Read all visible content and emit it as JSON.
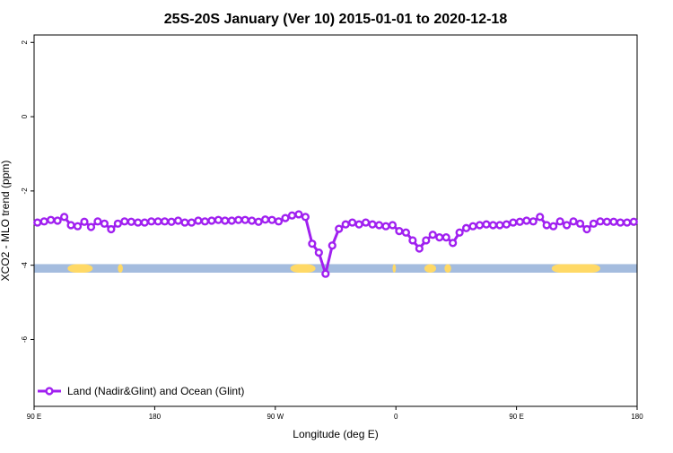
{
  "chart_data": {
    "type": "line",
    "title": "25S-20S January (Ver 10)   2015-01-01 to 2020-12-18",
    "xlabel": "Longitude (deg E)",
    "ylabel": "XCO2 - MLO trend (ppm)",
    "xlim": [
      90,
      450
    ],
    "ylim": [
      -7.8,
      2.2
    ],
    "x_ticks": [
      {
        "value": 90,
        "label": "90 E"
      },
      {
        "value": 162,
        "label": "180"
      },
      {
        "value": 234,
        "label": "90 W"
      },
      {
        "value": 306,
        "label": "0"
      },
      {
        "value": 378,
        "label": "90 E"
      },
      {
        "value": 450,
        "label": "180"
      }
    ],
    "y_ticks": [
      {
        "value": 2,
        "label": "2"
      },
      {
        "value": 0,
        "label": "0"
      },
      {
        "value": -2,
        "label": "-2"
      },
      {
        "value": -4,
        "label": "-4"
      },
      {
        "value": -6,
        "label": "-6"
      }
    ],
    "grid": false,
    "legend_position": "bottom-left",
    "colors": {
      "series": "#a020f0",
      "land": "#ffd966",
      "ocean": "#a4bcde"
    },
    "surface_band": {
      "y_range": [
        -4.2,
        -3.97
      ],
      "land_spans": [
        [
          110,
          125
        ],
        [
          140,
          143
        ],
        [
          243,
          258
        ],
        [
          304,
          306
        ],
        [
          323,
          330
        ],
        [
          335,
          339
        ],
        [
          399,
          428
        ],
        [
          450,
          450
        ]
      ]
    },
    "series": [
      {
        "name": "Land (Nadir&Glint) and Ocean (Glint)",
        "x": [
          92,
          96,
          100,
          104,
          108,
          112,
          116,
          120,
          124,
          128,
          132,
          136,
          140,
          144,
          148,
          152,
          156,
          160,
          164,
          168,
          172,
          176,
          180,
          184,
          188,
          192,
          196,
          200,
          204,
          208,
          212,
          216,
          220,
          224,
          228,
          232,
          236,
          240,
          244,
          248,
          252,
          256,
          260,
          264,
          268,
          272,
          276,
          280,
          284,
          288,
          292,
          296,
          300,
          304,
          308,
          312,
          316,
          320,
          324,
          328,
          332,
          336,
          340,
          344,
          348,
          352,
          356,
          360,
          364,
          368,
          372,
          376,
          380,
          384,
          388,
          392,
          396,
          400,
          404,
          408,
          412,
          416,
          420,
          424,
          428,
          432,
          436,
          440,
          444,
          448
        ],
        "y": [
          -2.85,
          -2.82,
          -2.78,
          -2.8,
          -2.7,
          -2.92,
          -2.95,
          -2.83,
          -2.97,
          -2.82,
          -2.88,
          -3.03,
          -2.88,
          -2.82,
          -2.83,
          -2.85,
          -2.85,
          -2.82,
          -2.82,
          -2.82,
          -2.83,
          -2.8,
          -2.85,
          -2.85,
          -2.8,
          -2.82,
          -2.8,
          -2.78,
          -2.8,
          -2.8,
          -2.78,
          -2.78,
          -2.8,
          -2.83,
          -2.77,
          -2.78,
          -2.82,
          -2.73,
          -2.66,
          -2.63,
          -2.7,
          -3.42,
          -3.66,
          -4.23,
          -3.47,
          -3.02,
          -2.9,
          -2.85,
          -2.9,
          -2.85,
          -2.9,
          -2.92,
          -2.95,
          -2.92,
          -3.08,
          -3.12,
          -3.33,
          -3.55,
          -3.33,
          -3.18,
          -3.25,
          -3.25,
          -3.4,
          -3.12,
          -3.0,
          -2.95,
          -2.92,
          -2.9,
          -2.92,
          -2.92,
          -2.9,
          -2.85,
          -2.83,
          -2.8,
          -2.82,
          -2.7,
          -2.92,
          -2.95,
          -2.82,
          -2.92,
          -2.82,
          -2.88,
          -3.03,
          -2.88,
          -2.82,
          -2.83,
          -2.83,
          -2.85,
          -2.85,
          -2.83
        ]
      }
    ]
  }
}
